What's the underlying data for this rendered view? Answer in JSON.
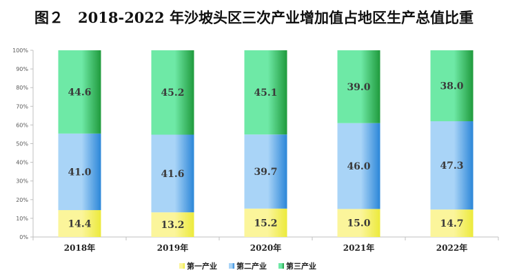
{
  "chart_data": {
    "type": "bar",
    "stacked": true,
    "percent": true,
    "title": "图２　2018-2022 年沙坡头区三次产业增加值占地区生产总值比重",
    "categories": [
      "2018年",
      "2019年",
      "2020年",
      "2021年",
      "2022年"
    ],
    "series": [
      {
        "name": "第一产业",
        "values": [
          14.4,
          13.2,
          15.2,
          15.0,
          14.7
        ],
        "color": "#ecea3c",
        "color_light": "#fbf59b"
      },
      {
        "name": "第二产业",
        "values": [
          41.0,
          41.6,
          39.7,
          46.0,
          47.3
        ],
        "color": "#2b86d8",
        "color_light": "#a9d4f7"
      },
      {
        "name": "第三产业",
        "values": [
          44.6,
          45.2,
          45.1,
          39.0,
          38.0
        ],
        "color": "#1f9a3c",
        "color_light": "#6ee9a6"
      }
    ],
    "y_ticks": [
      "0%",
      "10%",
      "20%",
      "30%",
      "40%",
      "50%",
      "60%",
      "70%",
      "80%",
      "90%",
      "100%"
    ],
    "ylim": [
      0,
      100
    ],
    "grid": false,
    "legend_position": "bottom"
  }
}
